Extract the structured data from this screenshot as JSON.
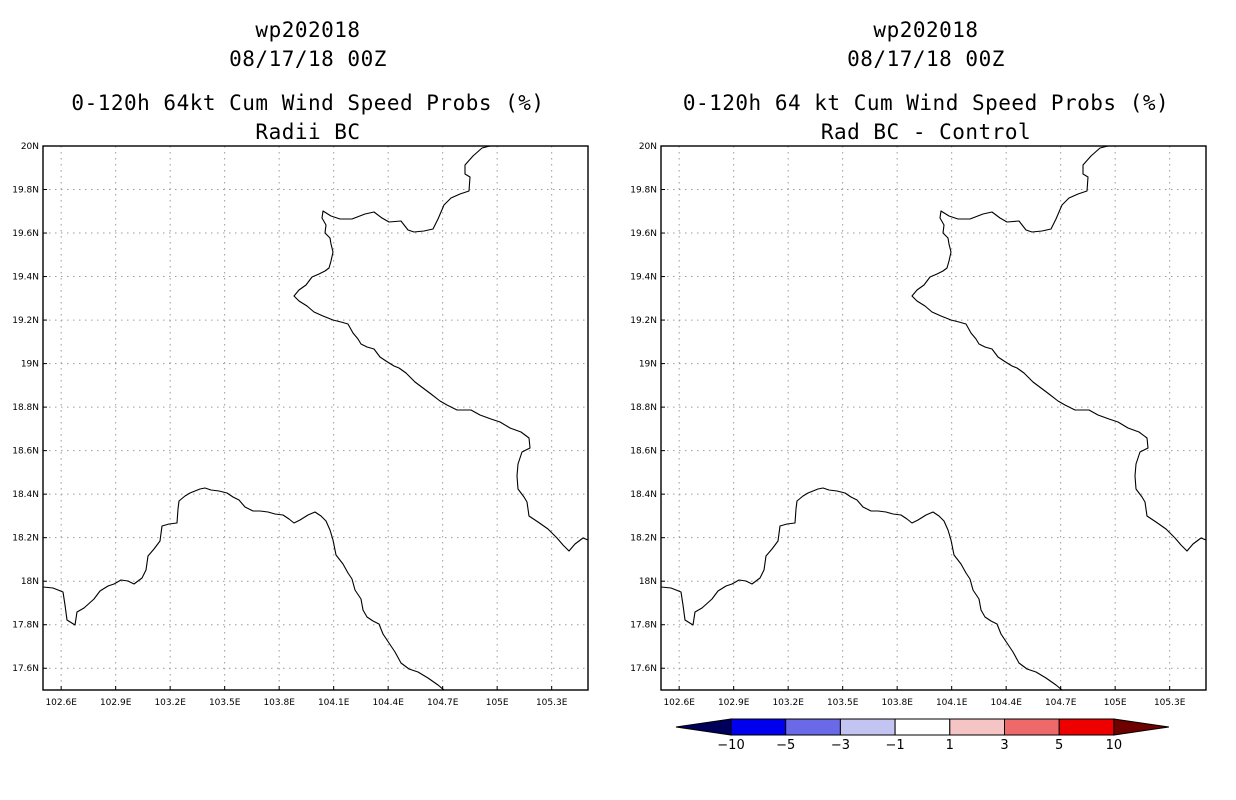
{
  "panels": [
    {
      "storm_id": "wp202018",
      "datetime": "08/17/18 00Z",
      "title": "0-120h 64kt Cum Wind Speed Probs (%)",
      "subtitle": "Radii BC"
    },
    {
      "storm_id": "wp202018",
      "datetime": "08/17/18 00Z",
      "title": "0-120h 64 kt Cum Wind Speed Probs (%)",
      "subtitle": "Rad BC - Control"
    }
  ],
  "map": {
    "lon_range": [
      102.5,
      105.5
    ],
    "lat_range": [
      17.5,
      20.0
    ],
    "lon_ticks": [
      "102.6E",
      "102.9E",
      "103.2E",
      "103.5E",
      "103.8E",
      "104.1E",
      "104.4E",
      "104.7E",
      "105E",
      "105.3E"
    ],
    "lat_ticks": [
      "20N",
      "19.8N",
      "19.6N",
      "19.4N",
      "19.2N",
      "19N",
      "18.8N",
      "18.6N",
      "18.4N",
      "18.2N",
      "18N",
      "17.8N",
      "17.6N"
    ],
    "grid": "dotted",
    "coastline_color": "#000000"
  },
  "colorbar": {
    "labels": [
      "-10",
      "-5",
      "-3",
      "-1",
      "1",
      "3",
      "5",
      "10"
    ],
    "colors": [
      "#00005a",
      "#0000ee",
      "#6a6ae8",
      "#c4c4f2",
      "#ffffff",
      "#f5c4c4",
      "#ee6a6a",
      "#ee0000",
      "#6e0000"
    ]
  }
}
